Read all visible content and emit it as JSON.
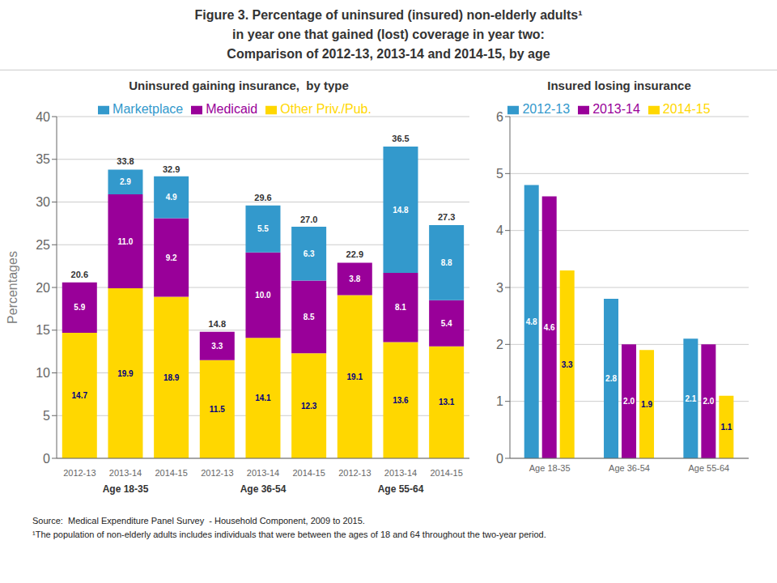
{
  "title": "Figure 3. Percentage of uninsured (insured) non-elderly adults¹\nin year one that gained (lost) coverage in year two:\nComparison of 2012-13, 2013-14 and 2014-15, by age",
  "annotations": [
    "Source:  Medical Expenditure Panel Survey  - Household Component, 2009 to 2015.",
    "¹The population of non-elderly adults includes individuals that were between the ages of 18 and 64 throughout the two-year period."
  ],
  "chart_data": [
    {
      "type": "bar",
      "stacked": true,
      "title": "Uninsured gaining insurance,  by type",
      "y_label": "Percentages",
      "categories": [
        "2012-13",
        "2013-14",
        "2014-15",
        "2012-13",
        "2013-14",
        "2014-15",
        "2012-13",
        "2013-14",
        "2014-15"
      ],
      "category_groups": [
        "Age 18-35",
        "Age 36-54",
        "Age 55-64"
      ],
      "series": [
        {
          "name": "Other Priv./Pub.",
          "color": "#FFD700",
          "values": [
            14.7,
            19.9,
            18.9,
            11.5,
            14.1,
            12.3,
            19.1,
            13.6,
            13.1
          ]
        },
        {
          "name": "Medicaid",
          "color": "#990099",
          "values": [
            5.9,
            11.0,
            9.2,
            3.3,
            10.0,
            8.5,
            3.8,
            8.1,
            5.4
          ],
          "value_labels": [
            "5.9",
            "11.0",
            "9.2",
            "3.3",
            "10.0",
            "8.5",
            "3.8",
            "8.1",
            "5.4"
          ]
        },
        {
          "name": "Marketplace",
          "color": "#3399CC",
          "values": [
            0.0,
            2.9,
            4.9,
            0.0,
            5.5,
            6.3,
            0.0,
            14.8,
            8.8
          ],
          "value_labels": [
            null,
            "2.9",
            "4.9",
            null,
            "5.5",
            "6.3",
            null,
            "14.8",
            "8.8"
          ]
        }
      ],
      "totals": [
        20.6,
        33.8,
        32.9,
        14.8,
        29.6,
        27.0,
        22.9,
        36.5,
        27.3
      ],
      "total_labels": [
        "20.6",
        "33.8",
        "32.9",
        "14.8",
        "29.6",
        "27.0",
        "22.9",
        "36.5",
        "27.3"
      ],
      "ylim": [
        0,
        40
      ],
      "yticks": [
        0,
        5,
        10,
        15,
        20,
        25,
        30,
        35,
        40
      ],
      "grid": true,
      "data_labels": true,
      "legend": "top"
    },
    {
      "type": "bar",
      "title": "Insured losing insurance",
      "categories": [
        "Age 18-35",
        "Age 36-54",
        "Age 55-64"
      ],
      "series": [
        {
          "name": "2012-13",
          "color": "#3399CC",
          "values": [
            4.8,
            2.8,
            2.1
          ]
        },
        {
          "name": "2013-14",
          "color": "#990099",
          "values": [
            4.6,
            2.0,
            2.0
          ],
          "value_labels": [
            "4.6",
            "2.0",
            "2.0"
          ]
        },
        {
          "name": "2014-15",
          "color": "#FFD700",
          "values": [
            3.3,
            1.9,
            1.1
          ]
        }
      ],
      "ylim": [
        0,
        6
      ],
      "yticks": [
        0,
        1,
        2,
        3,
        4,
        5,
        6
      ],
      "grid": true,
      "data_labels": true,
      "legend": "top"
    }
  ]
}
